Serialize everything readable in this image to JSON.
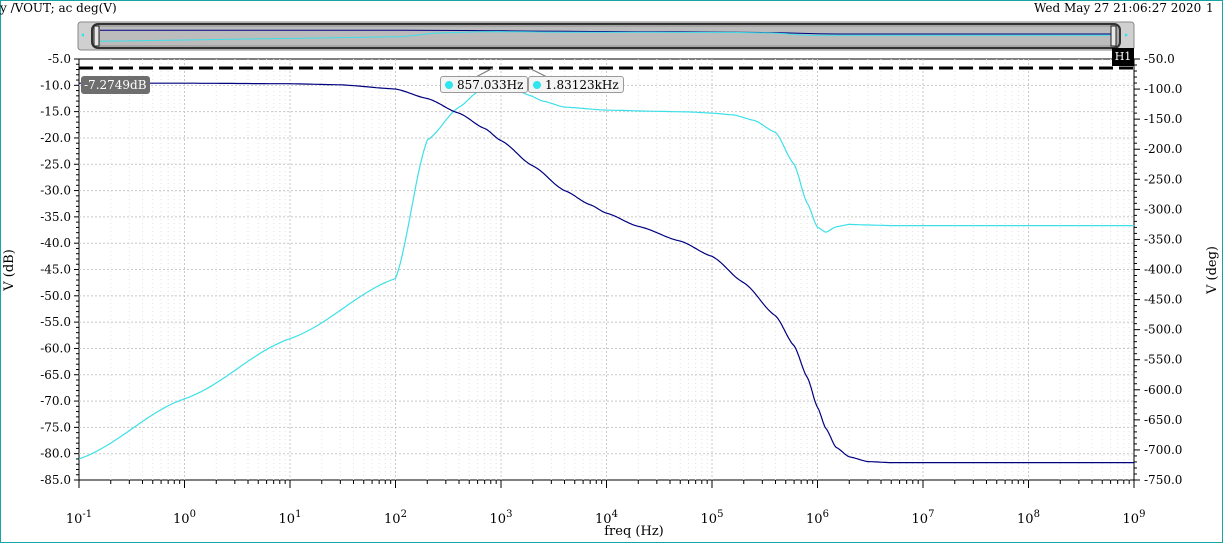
{
  "header": {
    "trace_title": "y /VOUT; ac deg(V)",
    "timestamp": "Wed May 27 21:06:27 2020",
    "year_fragment": "2020",
    "page_indicator": "1"
  },
  "markers": {
    "h_marker_label": "H1",
    "y_marker_value": "-7.2749dB",
    "freq_marker_1": "857.033Hz",
    "freq_marker_2": "1.83123kHz"
  },
  "colors": {
    "magnitude_trace": "#000080",
    "phase_trace": "#3de0e8",
    "grid": "#c8c8c8",
    "marker_dot": "#2ee6f0"
  },
  "chart_data": {
    "type": "line",
    "xlabel": "freq (Hz)",
    "ylabel": "V (dB)",
    "y2label": "V (deg)",
    "xscale": "log",
    "xlim": [
      0.1,
      1000000000
    ],
    "ylim": [
      -85,
      -5
    ],
    "y2lim": [
      -750,
      -50
    ],
    "grid": true,
    "legend": "none",
    "x_ticks": [
      {
        "base": "10",
        "exp": "-1"
      },
      {
        "base": "10",
        "exp": "0"
      },
      {
        "base": "10",
        "exp": "1"
      },
      {
        "base": "10",
        "exp": "2"
      },
      {
        "base": "10",
        "exp": "3"
      },
      {
        "base": "10",
        "exp": "4"
      },
      {
        "base": "10",
        "exp": "5"
      },
      {
        "base": "10",
        "exp": "6"
      },
      {
        "base": "10",
        "exp": "7"
      },
      {
        "base": "10",
        "exp": "8"
      },
      {
        "base": "10",
        "exp": "9"
      }
    ],
    "y_ticks": [
      "-5.0",
      "-10.0",
      "-15.0",
      "-20.0",
      "-25.0",
      "-30.0",
      "-35.0",
      "-40.0",
      "-45.0",
      "-50.0",
      "-55.0",
      "-60.0",
      "-65.0",
      "-70.0",
      "-75.0",
      "-80.0",
      "-85.0"
    ],
    "y2_ticks": [
      "-50.0",
      "-100.0",
      "-150.0",
      "-200.0",
      "-250.0",
      "-300.0",
      "-350.0",
      "-400.0",
      "-450.0",
      "-500.0",
      "-550.0",
      "-600.0",
      "-650.0",
      "-700.0",
      "-750.0"
    ],
    "series": [
      {
        "axis": "left",
        "x": [
          0.1,
          1,
          10,
          30,
          100,
          200,
          400,
          700,
          1000,
          2000,
          4000,
          7000,
          10000,
          20000,
          50000,
          100000,
          200000,
          400000,
          600000,
          800000,
          1000000,
          1200000,
          1500000,
          2000000,
          3000000,
          5000000,
          10000000,
          100000000,
          1000000000
        ],
        "y": [
          -9.6,
          -9.6,
          -9.7,
          -9.9,
          -10.7,
          -12.5,
          -15.3,
          -18.2,
          -20.5,
          -25.3,
          -30.0,
          -32.7,
          -34.3,
          -36.8,
          -39.6,
          -42.5,
          -47.5,
          -53.8,
          -59.5,
          -65.5,
          -71.2,
          -75.2,
          -78.8,
          -80.6,
          -81.5,
          -81.7,
          -81.7,
          -81.7,
          -81.7
        ]
      },
      {
        "axis": "right",
        "x": [
          0.1,
          1,
          10,
          100,
          200,
          400,
          600,
          857,
          1000,
          1500,
          1831,
          2500,
          4000,
          10000,
          30000,
          60000,
          100000,
          160000,
          250000,
          400000,
          600000,
          800000,
          1000000,
          1200000,
          1500000,
          2000000,
          3000000,
          5000000,
          10000000,
          100000000,
          1000000000
        ],
        "y": [
          -715,
          -615,
          -515,
          -415,
          -185,
          -130,
          -105,
          -92,
          -95,
          -104,
          -110,
          -120,
          -130,
          -135,
          -137,
          -138,
          -140,
          -143,
          -152,
          -172,
          -225,
          -290,
          -330,
          -338,
          -329,
          -325,
          -326,
          -327,
          -327,
          -327,
          -327
        ]
      }
    ]
  }
}
